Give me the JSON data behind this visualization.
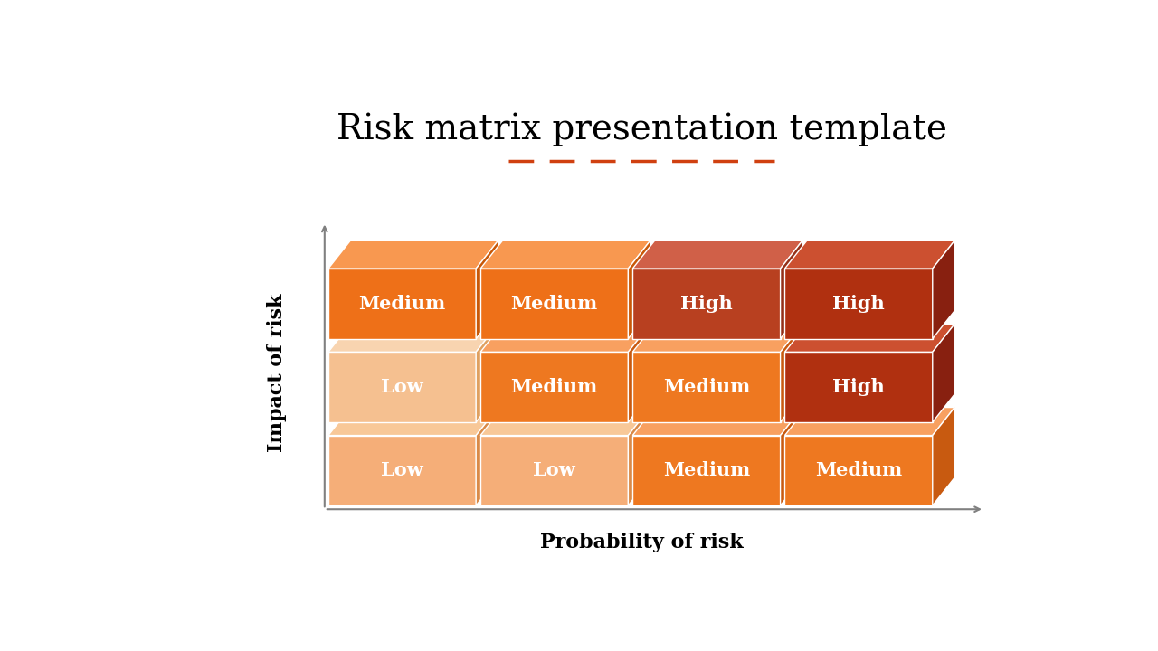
{
  "title": "Risk matrix presentation template",
  "title_fontsize": 28,
  "title_font": "serif",
  "xlabel": "Probability of risk",
  "ylabel": "Impact of risk",
  "axis_label_fontsize": 16,
  "deco_line_color": "#D04010",
  "background_color": "#ffffff",
  "grid": [
    [
      "Low",
      "Low",
      "Medium",
      "Medium"
    ],
    [
      "Low",
      "Medium",
      "Medium",
      "High"
    ],
    [
      "Medium",
      "Medium",
      "High",
      "High"
    ]
  ],
  "colors": {
    "r0c0": {
      "front": "#F5AE78",
      "top": "#F8C898",
      "side": "#D98A48"
    },
    "r0c1": {
      "front": "#F5AE78",
      "top": "#F8C898",
      "side": "#D98A48"
    },
    "r0c2": {
      "front": "#EE7820",
      "top": "#F8A060",
      "side": "#C85A10"
    },
    "r0c3": {
      "front": "#EE7820",
      "top": "#F8A060",
      "side": "#C85A10"
    },
    "r1c0": {
      "front": "#F5C090",
      "top": "#F8D4B0",
      "side": "#DFA060"
    },
    "r1c1": {
      "front": "#EE7820",
      "top": "#F8A060",
      "side": "#C85A10"
    },
    "r1c2": {
      "front": "#EE7820",
      "top": "#F8A060",
      "side": "#C85A10"
    },
    "r1c3": {
      "front": "#B03010",
      "top": "#CC5030",
      "side": "#882010"
    },
    "r2c0": {
      "front": "#EE7018",
      "top": "#F89850",
      "side": "#C85808"
    },
    "r2c1": {
      "front": "#EE7018",
      "top": "#F89850",
      "side": "#C85808"
    },
    "r2c2": {
      "front": "#B84020",
      "top": "#D06048",
      "side": "#943018"
    },
    "r2c3": {
      "front": "#B03010",
      "top": "#CC5030",
      "side": "#882010"
    }
  },
  "label_color": "#ffffff",
  "label_fontsize": 15,
  "label_font": "serif"
}
